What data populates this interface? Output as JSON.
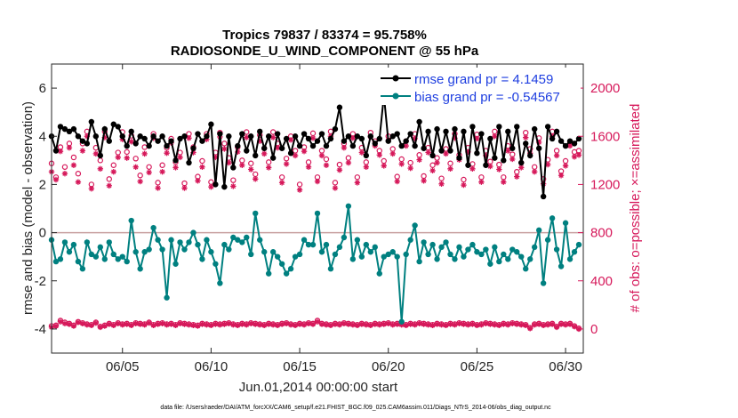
{
  "chart_data": {
    "type": "line",
    "title_line1": "Tropics 79837 / 83374 = 95.758%",
    "title_line2": "RADIOSONDE_U_WIND_COMPONENT @ 55 hPa",
    "xlabel": "Jun.01,2014 00:00:00 start",
    "ylabel_left": "rmse and bias (model - observation)",
    "ylabel_right": "# of obs: o=possible; ×=assimilated",
    "footnote": "data file: /Users/raeder/DAI/ATM_forcXX/CAM6_setup/f.e21.FHIST_BGC.f09_025.CAM6assim.011/Diags_NTrS_2014-06/obs_diag_output.nc",
    "x_ticks": [
      5,
      10,
      15,
      20,
      25,
      30
    ],
    "x_tick_labels": [
      "06/05",
      "06/10",
      "06/15",
      "06/20",
      "06/25",
      "06/30"
    ],
    "xlim": [
      1,
      31
    ],
    "ylim_left": [
      -5,
      7
    ],
    "y_ticks_left": [
      -4,
      -2,
      0,
      2,
      4,
      6
    ],
    "y_tick_labels_left": [
      "-4",
      "-2",
      "0",
      "2",
      "4",
      "6"
    ],
    "ylim_right": [
      -200,
      2200
    ],
    "y_ticks_right": [
      0,
      400,
      800,
      1200,
      1600,
      2000
    ],
    "y_tick_labels_right": [
      "0",
      "400",
      "800",
      "1200",
      "1600",
      "2000"
    ],
    "zero_line": 0,
    "colors": {
      "rmse": "#000000",
      "bias": "#008080",
      "obs": "#d6185a",
      "zero": "#c8a0a0",
      "legend_text": "#1f3fe0"
    },
    "legend": {
      "rmse_label": "rmse grand pr = 4.1459",
      "bias_label": "bias grand pr = -0.54567",
      "position": "top-right"
    },
    "x": [
      1.0,
      1.25,
      1.5,
      1.75,
      2.0,
      2.25,
      2.5,
      2.75,
      3.0,
      3.25,
      3.5,
      3.75,
      4.0,
      4.25,
      4.5,
      4.75,
      5.0,
      5.25,
      5.5,
      5.75,
      6.0,
      6.25,
      6.5,
      6.75,
      7.0,
      7.25,
      7.5,
      7.75,
      8.0,
      8.25,
      8.5,
      8.75,
      9.0,
      9.25,
      9.5,
      9.75,
      10.0,
      10.25,
      10.5,
      10.75,
      11.0,
      11.25,
      11.5,
      11.75,
      12.0,
      12.25,
      12.5,
      12.75,
      13.0,
      13.25,
      13.5,
      13.75,
      14.0,
      14.25,
      14.5,
      14.75,
      15.0,
      15.25,
      15.5,
      15.75,
      16.0,
      16.25,
      16.5,
      16.75,
      17.0,
      17.25,
      17.5,
      17.75,
      18.0,
      18.25,
      18.5,
      18.75,
      19.0,
      19.25,
      19.5,
      19.75,
      20.0,
      20.25,
      20.5,
      20.75,
      21.0,
      21.25,
      21.5,
      21.75,
      22.0,
      22.25,
      22.5,
      22.75,
      23.0,
      23.25,
      23.5,
      23.75,
      24.0,
      24.25,
      24.5,
      24.75,
      25.0,
      25.25,
      25.5,
      25.75,
      26.0,
      26.25,
      26.5,
      26.75,
      27.0,
      27.25,
      27.5,
      27.75,
      28.0,
      28.25,
      28.5,
      28.75,
      29.0,
      29.25,
      29.5,
      29.75,
      30.0,
      30.25,
      30.5,
      30.75
    ],
    "series": [
      {
        "name": "rmse",
        "values": [
          4.0,
          3.4,
          4.4,
          4.3,
          4.2,
          4.3,
          4.0,
          3.8,
          3.7,
          4.6,
          4.0,
          3.2,
          4.3,
          3.8,
          4.5,
          4.4,
          4.0,
          3.6,
          4.2,
          3.7,
          4.0,
          3.9,
          3.6,
          4.0,
          3.8,
          4.0,
          3.6,
          3.8,
          3.0,
          3.9,
          4.0,
          2.9,
          3.5,
          4.1,
          3.8,
          4.0,
          4.5,
          2.0,
          4.1,
          1.9,
          4.0,
          2.7,
          3.6,
          4.1,
          3.4,
          4.0,
          3.2,
          4.2,
          3.5,
          4.0,
          3.1,
          4.1,
          3.5,
          3.9,
          3.3,
          4.0,
          3.6,
          4.1,
          3.9,
          3.6,
          3.8,
          4.1,
          3.6,
          3.9,
          4.3,
          5.2,
          3.8,
          4.0,
          3.6,
          4.0,
          3.9,
          3.2,
          4.0,
          3.7,
          3.9,
          5.7,
          3.8,
          4.0,
          4.1,
          3.6,
          3.8,
          4.1,
          3.6,
          4.6,
          3.5,
          4.2,
          3.2,
          4.3,
          3.4,
          4.2,
          3.4,
          4.3,
          3.1,
          4.2,
          2.8,
          4.4,
          3.3,
          4.1,
          2.8,
          3.9,
          3.1,
          4.4,
          3.0,
          4.2,
          3.5,
          4.4,
          2.9,
          3.7,
          3.2,
          4.3,
          3.5,
          1.5,
          4.4,
          3.9,
          4.2,
          3.8,
          3.6,
          3.8,
          3.7,
          3.9
        ]
      },
      {
        "name": "bias",
        "values": [
          -0.3,
          -1.2,
          -1.1,
          -0.4,
          -0.8,
          -0.5,
          -1.2,
          -1.5,
          -0.4,
          -0.9,
          -1.0,
          -0.6,
          -1.1,
          -0.4,
          -0.9,
          -1.1,
          -1.0,
          -1.2,
          0.5,
          -0.8,
          -1.5,
          -0.8,
          -0.7,
          0.2,
          -0.3,
          -0.7,
          -2.7,
          -0.3,
          -1.3,
          -0.4,
          -0.7,
          -0.4,
          0.0,
          -0.5,
          -1.1,
          -0.3,
          -0.8,
          -1.3,
          -2.1,
          -0.5,
          -0.7,
          -0.2,
          -0.3,
          -0.4,
          -0.2,
          -0.9,
          0.8,
          -0.3,
          -0.8,
          -1.7,
          -0.8,
          -1.0,
          -1.3,
          -1.7,
          -1.5,
          -1.0,
          -0.9,
          -0.3,
          -0.5,
          -0.5,
          0.8,
          -0.8,
          -0.5,
          -1.5,
          -0.9,
          -0.6,
          -0.2,
          1.1,
          -1.1,
          -0.3,
          -1.0,
          -0.5,
          -0.8,
          -0.6,
          -1.7,
          -1.0,
          -0.9,
          -0.8,
          -1.0,
          -3.7,
          -0.9,
          -0.3,
          0.3,
          -1.2,
          -0.4,
          -0.9,
          -0.5,
          -1.1,
          -0.6,
          -0.4,
          -0.9,
          -1.1,
          -0.6,
          -1.0,
          -0.7,
          -0.5,
          -0.8,
          -0.9,
          -0.7,
          -1.3,
          -0.6,
          -1.2,
          -0.9,
          -1.1,
          -0.7,
          -0.8,
          -1.0,
          -1.5,
          -1.1,
          -0.6,
          0.1,
          -2.1,
          -0.3,
          0.6,
          -0.7,
          -1.4,
          0.4,
          -1.1,
          -0.8,
          -0.5
        ]
      },
      {
        "name": "obs_possible",
        "values": [
          1375,
          1260,
          1510,
          1345,
          1540,
          1425,
          1290,
          1540,
          1640,
          1200,
          1505,
          1400,
          1640,
          1245,
          1360,
          1465,
          1635,
          1470,
          1605,
          1415,
          1275,
          1510,
          1345,
          1620,
          1215,
          1360,
          1505,
          1580,
          1385,
          1465,
          1210,
          1620,
          1510,
          1265,
          1395,
          1620,
          1220,
          1465,
          1630,
          1540,
          1420,
          1235,
          1510,
          1400,
          1635,
          1375,
          1285,
          1610,
          1500,
          1385,
          1635,
          1540,
          1260,
          1415,
          1600,
          1480,
          1200,
          1510,
          1385,
          1625,
          1260,
          1480,
          1410,
          1640,
          1215,
          1365,
          1540,
          1420,
          1620,
          1260,
          1505,
          1385,
          1630,
          1560,
          1480,
          1395,
          1600,
          1495,
          1265,
          1410,
          1560,
          1380,
          1620,
          1445,
          1270,
          1505,
          1360,
          1420,
          1250,
          1495,
          1375,
          1620,
          1445,
          1240,
          1505,
          1370,
          1615,
          1260,
          1480,
          1390,
          1640,
          1365,
          1260,
          1520,
          1450,
          1305,
          1380,
          1630,
          1495,
          1345,
          1585,
          1245,
          1405,
          1640,
          1480,
          1310,
          1395,
          1555,
          1470,
          1480
        ]
      },
      {
        "name": "obs_assimilated",
        "values": [
          1305,
          1240,
          1475,
          1290,
          1505,
          1360,
          1220,
          1480,
          1600,
          1165,
          1455,
          1330,
          1590,
          1190,
          1305,
          1425,
          1575,
          1420,
          1555,
          1345,
          1225,
          1455,
          1300,
          1585,
          1170,
          1305,
          1460,
          1545,
          1340,
          1425,
          1170,
          1585,
          1465,
          1230,
          1345,
          1575,
          1180,
          1425,
          1595,
          1495,
          1380,
          1185,
          1470,
          1360,
          1590,
          1325,
          1245,
          1560,
          1455,
          1340,
          1590,
          1505,
          1215,
          1370,
          1570,
          1440,
          1155,
          1475,
          1345,
          1585,
          1225,
          1440,
          1360,
          1600,
          1170,
          1320,
          1505,
          1380,
          1585,
          1215,
          1465,
          1345,
          1595,
          1520,
          1445,
          1355,
          1565,
          1455,
          1225,
          1370,
          1520,
          1335,
          1580,
          1405,
          1230,
          1465,
          1315,
          1380,
          1205,
          1455,
          1330,
          1585,
          1405,
          1195,
          1470,
          1330,
          1580,
          1220,
          1440,
          1350,
          1600,
          1325,
          1220,
          1480,
          1410,
          1265,
          1340,
          1590,
          1460,
          1305,
          1550,
          1205,
          1365,
          1600,
          1440,
          1275,
          1355,
          1520,
          1430,
          1445
        ]
      },
      {
        "name": "obs_bottom_possible",
        "values": [
          25,
          30,
          70,
          55,
          45,
          30,
          60,
          50,
          40,
          35,
          55,
          20,
          30,
          45,
          35,
          50,
          40,
          45,
          35,
          50,
          45,
          40,
          55,
          35,
          45,
          50,
          40,
          45,
          35,
          50,
          45,
          40,
          35,
          30,
          45,
          40,
          35,
          45,
          40,
          45,
          50,
          40,
          35,
          45,
          40,
          50,
          45,
          40,
          35,
          45,
          40,
          35,
          45,
          50,
          40,
          35,
          45,
          40,
          50,
          45,
          70,
          45,
          40,
          35,
          45,
          40,
          50,
          45,
          40,
          35,
          45,
          40,
          35,
          45,
          40,
          45,
          50,
          40,
          45,
          40,
          35,
          45,
          40,
          50,
          45,
          40,
          35,
          45,
          40,
          35,
          45,
          40,
          50,
          45,
          40,
          45,
          35,
          40,
          50,
          45,
          40,
          35,
          45,
          40,
          50,
          45,
          40,
          35,
          10,
          40,
          45,
          35,
          40,
          45,
          20,
          45,
          40,
          45,
          25,
          5
        ]
      },
      {
        "name": "obs_bottom_assimilated",
        "values": [
          15,
          25,
          60,
          45,
          40,
          25,
          55,
          45,
          35,
          30,
          50,
          15,
          25,
          40,
          30,
          45,
          35,
          40,
          30,
          45,
          40,
          35,
          50,
          30,
          40,
          45,
          35,
          40,
          30,
          45,
          40,
          35,
          30,
          25,
          40,
          35,
          30,
          40,
          35,
          40,
          45,
          35,
          30,
          40,
          35,
          45,
          40,
          35,
          30,
          40,
          35,
          30,
          40,
          45,
          35,
          30,
          40,
          35,
          45,
          40,
          60,
          40,
          35,
          30,
          40,
          35,
          45,
          40,
          35,
          30,
          40,
          35,
          30,
          40,
          35,
          40,
          45,
          35,
          40,
          35,
          30,
          40,
          35,
          45,
          40,
          35,
          30,
          40,
          35,
          30,
          40,
          35,
          45,
          40,
          35,
          40,
          30,
          35,
          45,
          40,
          35,
          30,
          40,
          35,
          45,
          40,
          35,
          30,
          5,
          35,
          40,
          30,
          35,
          40,
          15,
          40,
          35,
          40,
          20,
          0
        ]
      }
    ]
  }
}
